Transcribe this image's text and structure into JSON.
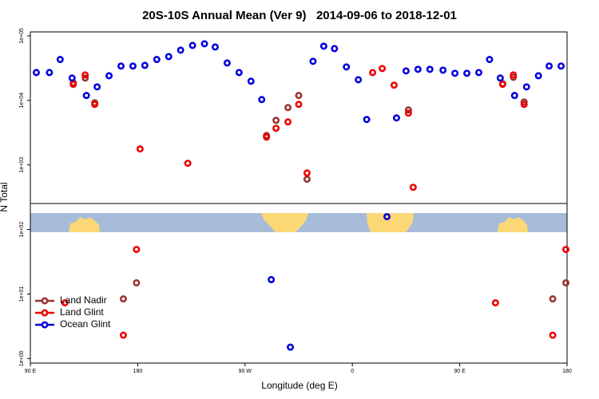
{
  "chart_data": {
    "type": "scatter",
    "title": "20S-10S Annual Mean (Ver 9)   2014-09-06 to 2018-12-01",
    "x_label": "Longitude (deg E)",
    "y_label": "N Total",
    "log_y": true,
    "legend": "lower left",
    "xlim": [
      90,
      540
    ],
    "xticks": [
      {
        "value": 90,
        "label": "90 E"
      },
      {
        "value": 180,
        "label": "180"
      },
      {
        "value": 270,
        "label": "90 W"
      },
      {
        "value": 360,
        "label": "0"
      },
      {
        "value": 450,
        "label": "90 E"
      },
      {
        "value": 540,
        "label": "180"
      }
    ],
    "ylim": [
      0.85,
      115000
    ],
    "yticks": [
      {
        "value": 1,
        "label": "1e+00"
      },
      {
        "value": 10,
        "label": "1e+01"
      },
      {
        "value": 100,
        "label": "1e+02"
      },
      {
        "value": 1000,
        "label": "1e+03"
      },
      {
        "value": 10000,
        "label": "1e+04"
      },
      {
        "value": 100000,
        "label": "1e+05"
      }
    ],
    "series": [
      {
        "name": "Land Nadir",
        "color": "#993333",
        "x": [
          126,
          136,
          144,
          168,
          179,
          288,
          296,
          306,
          315,
          322,
          407,
          486,
          495,
          504,
          528,
          539
        ],
        "values": [
          18700,
          22200,
          9180,
          8.4,
          14.9,
          2860,
          4910,
          7740,
          11900,
          600,
          7110,
          18200,
          22800,
          9440,
          8.4,
          14.9
        ]
      },
      {
        "name": "Land Glint",
        "color": "#ee0000",
        "x": [
          119,
          126,
          136,
          144,
          168,
          179,
          182,
          222,
          288,
          296,
          306,
          315,
          322,
          377,
          385,
          395,
          407,
          411,
          480,
          486,
          495,
          504,
          528,
          539
        ],
        "values": [
          7.3,
          17700,
          24800,
          8680,
          2.3,
          49,
          1770,
          1060,
          2700,
          3700,
          4640,
          8680,
          750,
          27000,
          31200,
          17200,
          6340,
          450,
          7.3,
          17700,
          24800,
          8680,
          2.3,
          49
        ]
      },
      {
        "name": "Ocean Glint",
        "color": "#0000dd",
        "x": [
          95,
          106,
          115,
          125,
          137,
          146,
          156,
          166,
          176,
          186,
          196,
          206,
          216,
          226,
          236,
          245,
          255,
          265,
          275,
          284,
          292,
          308,
          327,
          336,
          345,
          355,
          365,
          372,
          389,
          397,
          405,
          415,
          425,
          436,
          446,
          456,
          466,
          475,
          484,
          496,
          506,
          516,
          525,
          535
        ],
        "values": [
          27000,
          27000,
          43000,
          22200,
          11900,
          16200,
          24100,
          34000,
          34000,
          34900,
          43000,
          47700,
          60000,
          71100,
          75300,
          67100,
          38000,
          27000,
          19800,
          10300,
          16.7,
          1.5,
          40300,
          69200,
          63400,
          33000,
          20900,
          5060,
          158,
          5350,
          28600,
          30300,
          30300,
          29400,
          26300,
          26300,
          27000,
          43000,
          22200,
          11900,
          16200,
          24100,
          34000,
          34000
        ]
      }
    ]
  }
}
